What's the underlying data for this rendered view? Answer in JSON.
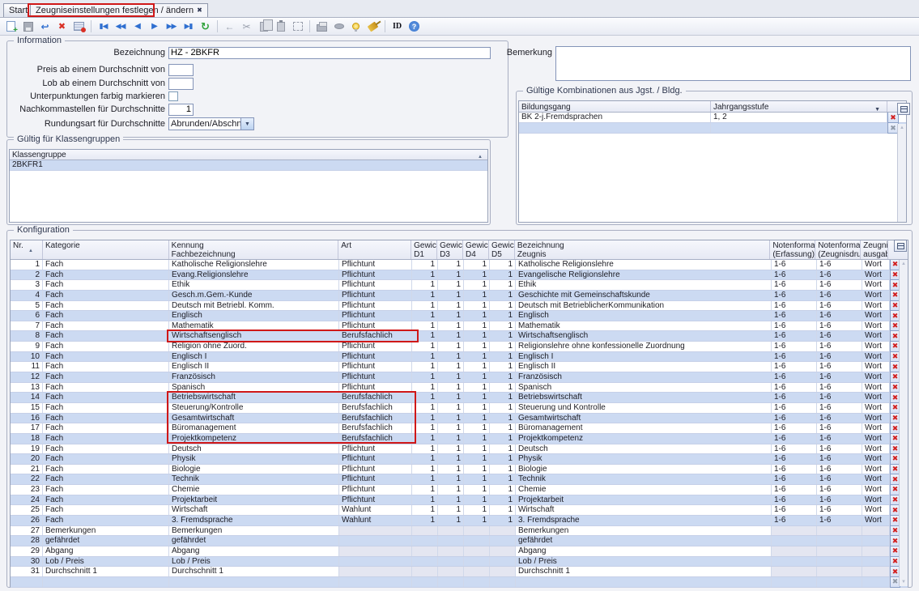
{
  "tabs": [
    {
      "label": "Start"
    },
    {
      "label": "Zeugniseinstellungen festlegen / ändern"
    }
  ],
  "toolbar": {
    "id_label": "ID",
    "groups": [
      [
        "new-record",
        "save",
        "undo",
        "delete",
        "edit-form"
      ],
      [
        "first-record",
        "prev-fast",
        "prev",
        "next",
        "next-fast",
        "last-record",
        "refresh"
      ],
      [
        "back-arrow",
        "cut",
        "copy",
        "paste",
        "select-region"
      ],
      [
        "print",
        "stamp",
        "hint",
        "clean"
      ],
      [
        "id-label",
        "help"
      ]
    ]
  },
  "icons": {
    "close": "✖",
    "delete_x": "✖",
    "sort_asc": "▲",
    "dropdown": "▼",
    "undo": "↩",
    "refresh": "↻",
    "back": "←",
    "cut": "✂",
    "prev": "◀",
    "next": "▶",
    "bar": "▮",
    "scroll_up": "▲",
    "scroll_down": "▼"
  },
  "information": {
    "legend": "Information",
    "bezeichnung_label": "Bezeichnung",
    "bezeichnung_value": "HZ - 2BKFR",
    "preis_label": "Preis ab einem Durchschnitt von",
    "preis_value": "",
    "lob_label": "Lob ab einem Durchschnitt von",
    "lob_value": "",
    "unterpunktungen_label": "Unterpunktungen farbig markieren",
    "unterpunktungen_checked": false,
    "nachkomma_label": "Nachkommastellen für Durchschnitte",
    "nachkomma_value": "1",
    "rundungsart_label": "Rundungsart für Durchschnitte",
    "rundungsart_value": "Abrunden/Abschneiden"
  },
  "bemerkung": {
    "label": "Bemerkung",
    "value": ""
  },
  "kombinationen": {
    "legend": "Gültige Kombinationen aus Jgst. / Bldg.",
    "columns": [
      "Bildungsgang",
      "Jahrgangsstufe"
    ],
    "rows": [
      {
        "bildungsgang": "BK 2-j.Fremdsprachen",
        "jahrgangsstufe": "1, 2"
      }
    ]
  },
  "klassengruppen": {
    "legend": "Gültig für Klassengruppen",
    "column": "Klassengruppe",
    "rows": [
      "2BKFR1"
    ]
  },
  "konfiguration": {
    "legend": "Konfiguration",
    "columns": [
      {
        "lines": [
          "Nr."
        ],
        "sort": true
      },
      {
        "lines": [
          "Kategorie"
        ]
      },
      {
        "lines": [
          "Kennung",
          "Fachbezeichnung"
        ]
      },
      {
        "lines": [
          "Art"
        ]
      },
      {
        "lines": [
          "Gewicht",
          "D1"
        ]
      },
      {
        "lines": [
          "Gewicht",
          "D3"
        ]
      },
      {
        "lines": [
          "Gewicht",
          "D4"
        ]
      },
      {
        "lines": [
          "Gewicht",
          "D5"
        ]
      },
      {
        "lines": [
          "Bezeichnung",
          "Zeugnis"
        ]
      },
      {
        "lines": [
          "Notenformat",
          "(Erfassung)"
        ]
      },
      {
        "lines": [
          "Notenformat",
          "(Zeugnisdruck)"
        ]
      },
      {
        "lines": [
          "Zeugnis-",
          "ausgabe"
        ]
      }
    ],
    "rows": [
      [
        "1",
        "Fach",
        "Katholische Religionslehre",
        "Pflichtunt",
        "1",
        "1",
        "1",
        "1",
        "Katholische Religionslehre",
        "1-6",
        "1-6",
        "Wort"
      ],
      [
        "2",
        "Fach",
        "Evang.Religionslehre",
        "Pflichtunt",
        "1",
        "1",
        "1",
        "1",
        "Evangelische Religionslehre",
        "1-6",
        "1-6",
        "Wort"
      ],
      [
        "3",
        "Fach",
        "Ethik",
        "Pflichtunt",
        "1",
        "1",
        "1",
        "1",
        "Ethik",
        "1-6",
        "1-6",
        "Wort"
      ],
      [
        "4",
        "Fach",
        "Gesch.m.Gem.-Kunde",
        "Pflichtunt",
        "1",
        "1",
        "1",
        "1",
        "Geschichte mit Gemeinschaftskunde",
        "1-6",
        "1-6",
        "Wort"
      ],
      [
        "5",
        "Fach",
        "Deutsch mit Betriebl. Komm.",
        "Pflichtunt",
        "1",
        "1",
        "1",
        "1",
        "Deutsch mit BetrieblicherKommunikation",
        "1-6",
        "1-6",
        "Wort"
      ],
      [
        "6",
        "Fach",
        "Englisch",
        "Pflichtunt",
        "1",
        "1",
        "1",
        "1",
        "Englisch",
        "1-6",
        "1-6",
        "Wort"
      ],
      [
        "7",
        "Fach",
        "Mathematik",
        "Pflichtunt",
        "1",
        "1",
        "1",
        "1",
        "Mathematik",
        "1-6",
        "1-6",
        "Wort"
      ],
      [
        "8",
        "Fach",
        "Wirtschaftsenglisch",
        "Berufsfachlich",
        "1",
        "1",
        "1",
        "1",
        "Wirtschaftsenglisch",
        "1-6",
        "1-6",
        "Wort"
      ],
      [
        "9",
        "Fach",
        "Religion ohne Zuord.",
        "Pflichtunt",
        "1",
        "1",
        "1",
        "1",
        "Religionslehre ohne konfessionelle Zuordnung",
        "1-6",
        "1-6",
        "Wort"
      ],
      [
        "10",
        "Fach",
        "Englisch I",
        "Pflichtunt",
        "1",
        "1",
        "1",
        "1",
        "Englisch I",
        "1-6",
        "1-6",
        "Wort"
      ],
      [
        "11",
        "Fach",
        "Englisch II",
        "Pflichtunt",
        "1",
        "1",
        "1",
        "1",
        "Englisch II",
        "1-6",
        "1-6",
        "Wort"
      ],
      [
        "12",
        "Fach",
        "Französisch",
        "Pflichtunt",
        "1",
        "1",
        "1",
        "1",
        "Französisch",
        "1-6",
        "1-6",
        "Wort"
      ],
      [
        "13",
        "Fach",
        "Spanisch",
        "Pflichtunt",
        "1",
        "1",
        "1",
        "1",
        "Spanisch",
        "1-6",
        "1-6",
        "Wort"
      ],
      [
        "14",
        "Fach",
        "Betriebswirtschaft",
        "Berufsfachlich",
        "1",
        "1",
        "1",
        "1",
        "Betriebswirtschaft",
        "1-6",
        "1-6",
        "Wort"
      ],
      [
        "15",
        "Fach",
        "Steuerung/Kontrolle",
        "Berufsfachlich",
        "1",
        "1",
        "1",
        "1",
        "Steuerung und Kontrolle",
        "1-6",
        "1-6",
        "Wort"
      ],
      [
        "16",
        "Fach",
        "Gesamtwirtschaft",
        "Berufsfachlich",
        "1",
        "1",
        "1",
        "1",
        "Gesamtwirtschaft",
        "1-6",
        "1-6",
        "Wort"
      ],
      [
        "17",
        "Fach",
        "Büromanagement",
        "Berufsfachlich",
        "1",
        "1",
        "1",
        "1",
        "Büromanagement",
        "1-6",
        "1-6",
        "Wort"
      ],
      [
        "18",
        "Fach",
        "Projektkompetenz",
        "Berufsfachlich",
        "1",
        "1",
        "1",
        "1",
        "Projektkompetenz",
        "1-6",
        "1-6",
        "Wort"
      ],
      [
        "19",
        "Fach",
        "Deutsch",
        "Pflichtunt",
        "1",
        "1",
        "1",
        "1",
        "Deutsch",
        "1-6",
        "1-6",
        "Wort"
      ],
      [
        "20",
        "Fach",
        "Physik",
        "Pflichtunt",
        "1",
        "1",
        "1",
        "1",
        "Physik",
        "1-6",
        "1-6",
        "Wort"
      ],
      [
        "21",
        "Fach",
        "Biologie",
        "Pflichtunt",
        "1",
        "1",
        "1",
        "1",
        "Biologie",
        "1-6",
        "1-6",
        "Wort"
      ],
      [
        "22",
        "Fach",
        "Technik",
        "Pflichtunt",
        "1",
        "1",
        "1",
        "1",
        "Technik",
        "1-6",
        "1-6",
        "Wort"
      ],
      [
        "23",
        "Fach",
        "Chemie",
        "Pflichtunt",
        "1",
        "1",
        "1",
        "1",
        "Chemie",
        "1-6",
        "1-6",
        "Wort"
      ],
      [
        "24",
        "Fach",
        "Projektarbeit",
        "Pflichtunt",
        "1",
        "1",
        "1",
        "1",
        "Projektarbeit",
        "1-6",
        "1-6",
        "Wort"
      ],
      [
        "25",
        "Fach",
        "Wirtschaft",
        "Wahlunt",
        "1",
        "1",
        "1",
        "1",
        "Wirtschaft",
        "1-6",
        "1-6",
        "Wort"
      ],
      [
        "26",
        "Fach",
        "3. Fremdsprache",
        "Wahlunt",
        "1",
        "1",
        "1",
        "1",
        "3. Fremdsprache",
        "1-6",
        "1-6",
        "Wort"
      ],
      [
        "27",
        "Bemerkungen",
        "Bemerkungen",
        "",
        "",
        "",
        "",
        "",
        "Bemerkungen",
        "",
        "",
        ""
      ],
      [
        "28",
        "gefährdet",
        "gefährdet",
        "",
        "",
        "",
        "",
        "",
        "gefährdet",
        "",
        "",
        ""
      ],
      [
        "29",
        "Abgang",
        "Abgang",
        "",
        "",
        "",
        "",
        "",
        "Abgang",
        "",
        "",
        ""
      ],
      [
        "30",
        "Lob / Preis",
        "Lob / Preis",
        "",
        "",
        "",
        "",
        "",
        "Lob / Preis",
        "",
        "",
        ""
      ],
      [
        "31",
        "Durchschnitt 1",
        "Durchschnitt 1",
        "",
        "",
        "",
        "",
        "",
        "Durchschnitt 1",
        "",
        "",
        ""
      ]
    ]
  },
  "colors": {
    "row_alt_blue": "#ccdaf2",
    "annotation_red": "#d01818",
    "delete_red": "#d32020",
    "accent_blue": "#2f6fd0"
  },
  "annotations": [
    {
      "name": "active-tab-highlight"
    },
    {
      "name": "row-8-highlight"
    },
    {
      "name": "rows-14-18-highlight"
    }
  ]
}
